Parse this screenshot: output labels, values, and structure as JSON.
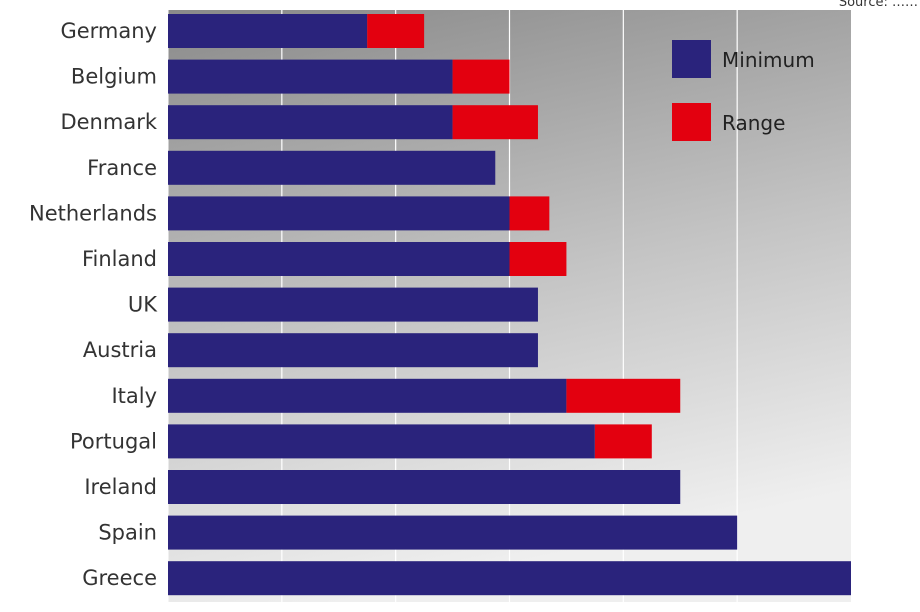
{
  "chart_data": {
    "type": "bar",
    "orientation": "horizontal",
    "stacked": true,
    "source_note": "Source: ……",
    "categories": [
      "Germany",
      "Belgium",
      "Denmark",
      "France",
      "Netherlands",
      "Finland",
      "UK",
      "Austria",
      "Italy",
      "Portugal",
      "Ireland",
      "Spain",
      "Greece"
    ],
    "series": [
      {
        "name": "Minimum",
        "color": "#2a237c",
        "values": [
          35,
          50,
          50,
          57.5,
          60,
          60,
          65,
          65,
          70,
          75,
          90,
          100,
          120
        ]
      },
      {
        "name": "Range",
        "color": "#e3000f",
        "values": [
          10,
          10,
          15,
          0,
          7,
          10,
          0,
          0,
          20,
          10,
          0,
          0,
          0
        ]
      }
    ],
    "xlim": [
      0,
      120
    ],
    "x_gridlines": [
      20,
      40,
      60,
      80,
      100
    ],
    "xlabel": "",
    "ylabel": "",
    "title": "",
    "grid": true,
    "legend": "top-right"
  }
}
